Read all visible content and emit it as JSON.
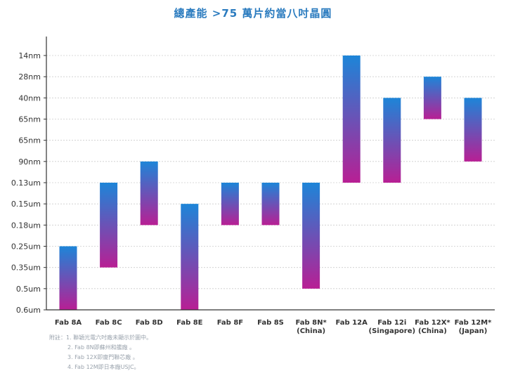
{
  "chart_data": {
    "type": "bar",
    "title": "總產能 >75 萬片約當八吋晶圓",
    "y_categories": [
      "14nm",
      "28nm",
      "40nm",
      "65nm",
      "65nm",
      "90nm",
      "0.13um",
      "0.15um",
      "0.18um",
      "0.25um",
      "0.35um",
      "0.5um",
      "0.6um"
    ],
    "categories": [
      {
        "name": "Fab 8A",
        "sub": ""
      },
      {
        "name": "Fab 8C",
        "sub": ""
      },
      {
        "name": "Fab 8D",
        "sub": ""
      },
      {
        "name": "Fab 8E",
        "sub": ""
      },
      {
        "name": "Fab 8F",
        "sub": ""
      },
      {
        "name": "Fab 8S",
        "sub": ""
      },
      {
        "name": "Fab 8N*",
        "sub": "(China)"
      },
      {
        "name": "Fab 12A",
        "sub": ""
      },
      {
        "name": "Fab 12i",
        "sub": "(Singapore)"
      },
      {
        "name": "Fab 12X*",
        "sub": "(China)"
      },
      {
        "name": "Fab 12M*",
        "sub": "(Japan)"
      }
    ],
    "ranges": [
      {
        "from": "0.25um",
        "to": "0.6um"
      },
      {
        "from": "0.13um",
        "to": "0.35um"
      },
      {
        "from": "90nm",
        "to": "0.18um"
      },
      {
        "from": "0.15um",
        "to": "0.6um"
      },
      {
        "from": "0.13um",
        "to": "0.18um"
      },
      {
        "from": "0.13um",
        "to": "0.18um"
      },
      {
        "from": "0.13um",
        "to": "0.5um"
      },
      {
        "from": "14nm",
        "to": "0.13um"
      },
      {
        "from": "40nm",
        "to": "0.13um"
      },
      {
        "from": "28nm",
        "to": "65nm"
      },
      {
        "from": "40nm",
        "to": "90nm"
      }
    ],
    "colors": {
      "top": "#1d85d8",
      "bottom": "#b81f94",
      "axis": "#333333",
      "grid": "#cccccc"
    },
    "grid": true
  },
  "notes": [
    "附註：1. 聯穎光電六吋廠未顯示於圖中。",
    "2. Fab 8N即蘇州和艦廠 。",
    "3. Fab 12X即廈門聯芯廠 。",
    "4. Fab 12M即日本廠USJC。"
  ]
}
